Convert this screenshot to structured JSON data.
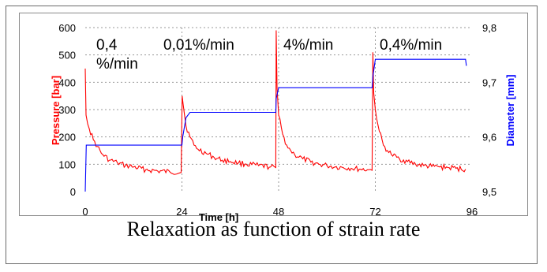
{
  "chart_data": {
    "type": "line",
    "title": "",
    "xlabel": "Time  [h]",
    "ylabel": "Pressure [bar]",
    "y2label": "Diameter [mm]",
    "xlim": [
      0,
      96
    ],
    "ylim": [
      0,
      600
    ],
    "y2lim": [
      9.5,
      9.8
    ],
    "x_ticks": [
      "0",
      "24",
      "48",
      "72",
      "96"
    ],
    "y_ticks": [
      "0",
      "100",
      "200",
      "300",
      "400",
      "500",
      "600"
    ],
    "y2_ticks": [
      "9,5",
      "9,6",
      "9,7",
      "9,8"
    ],
    "grid": "dotted",
    "phase_labels": [
      "0,4 %/min",
      "0,01%/min",
      "4%/min",
      "0,4%/min"
    ],
    "series": [
      {
        "name": "Pressure",
        "axis": "left",
        "color": "#ff0000",
        "x": [
          0,
          0.2,
          1,
          2,
          3,
          4,
          6,
          8,
          10,
          12,
          15,
          18,
          21,
          23.8,
          24.05,
          24.3,
          25,
          26,
          27,
          28,
          30,
          32,
          34,
          36,
          38,
          40,
          43,
          46,
          47.3,
          47.4,
          47.6,
          48,
          49,
          50,
          51,
          52,
          54,
          56,
          58,
          60,
          62,
          64,
          66,
          68,
          70,
          71.2,
          71.4,
          71.6,
          72,
          73,
          74,
          75,
          76,
          78,
          80,
          82,
          84,
          86,
          88,
          90,
          92,
          94.4
        ],
        "y": [
          450,
          280,
          230,
          190,
          165,
          140,
          115,
          105,
          95,
          90,
          80,
          75,
          72,
          70,
          350,
          320,
          240,
          200,
          170,
          155,
          140,
          125,
          115,
          110,
          105,
          100,
          95,
          90,
          88,
          590,
          380,
          280,
          210,
          170,
          150,
          135,
          120,
          108,
          100,
          95,
          90,
          88,
          85,
          82,
          80,
          78,
          510,
          360,
          300,
          220,
          170,
          150,
          135,
          120,
          110,
          100,
          95,
          92,
          90,
          88,
          85,
          82
        ]
      },
      {
        "name": "Diameter",
        "axis": "right",
        "color": "#0000ff",
        "x": [
          0,
          0.25,
          24,
          24.2,
          25,
          26,
          47.3,
          47.4,
          48,
          71.2,
          71.4,
          72,
          94.4,
          94.6
        ],
        "y": [
          9.5,
          9.585,
          9.585,
          9.6,
          9.635,
          9.645,
          9.645,
          9.67,
          9.69,
          9.69,
          9.71,
          9.742,
          9.742,
          9.73
        ]
      }
    ]
  }
}
